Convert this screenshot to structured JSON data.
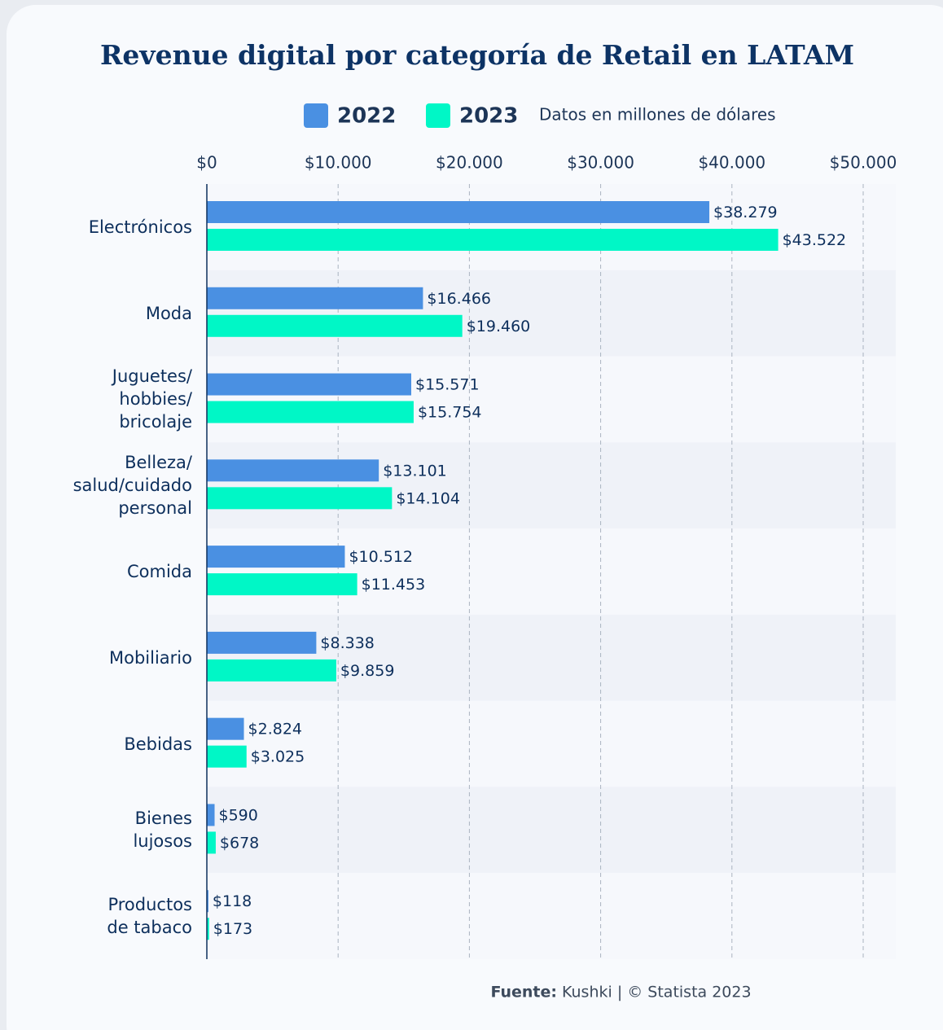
{
  "chart_data": {
    "type": "bar",
    "orientation": "horizontal",
    "title": "Revenue digital por categoría de Retail en LATAM",
    "note": "Datos en millones de dólares",
    "source_label": "Fuente:",
    "source": "Kushki | © Statista 2023",
    "categories": [
      "Electrónicos",
      "Moda",
      "Juguetes/\nhobbies/\nbricolaje",
      "Belleza/\nsalud/cuidado\npersonal",
      "Comida",
      "Mobiliario",
      "Bebidas",
      "Bienes\nlujosos",
      "Productos\nde tabaco"
    ],
    "series": [
      {
        "name": "2022",
        "color": "#4a90e2",
        "values": [
          38279,
          16466,
          15571,
          13101,
          10512,
          8338,
          2824,
          590,
          118
        ],
        "value_labels": [
          "$38.279",
          "$16.466",
          "$15.571",
          "$13.101",
          "$10.512",
          "$8.338",
          "$2.824",
          "$590",
          "$118"
        ]
      },
      {
        "name": "2023",
        "color": "#00f7c6",
        "values": [
          43522,
          19460,
          15754,
          14104,
          11453,
          9859,
          3025,
          678,
          173
        ],
        "value_labels": [
          "$43.522",
          "$19.460",
          "$15.754",
          "$14.104",
          "$11.453",
          "$9.859",
          "$3.025",
          "$678",
          "$173"
        ]
      }
    ],
    "xlim": [
      0,
      50000
    ],
    "xticks": [
      {
        "value": 0,
        "label": "$0"
      },
      {
        "value": 10000,
        "label": "$10.000"
      },
      {
        "value": 20000,
        "label": "$20.000"
      },
      {
        "value": 30000,
        "label": "$30.000"
      },
      {
        "value": 40000,
        "label": "$40.000"
      },
      {
        "value": 50000,
        "label": "$50.000"
      }
    ],
    "grid": true,
    "legend": "top"
  }
}
